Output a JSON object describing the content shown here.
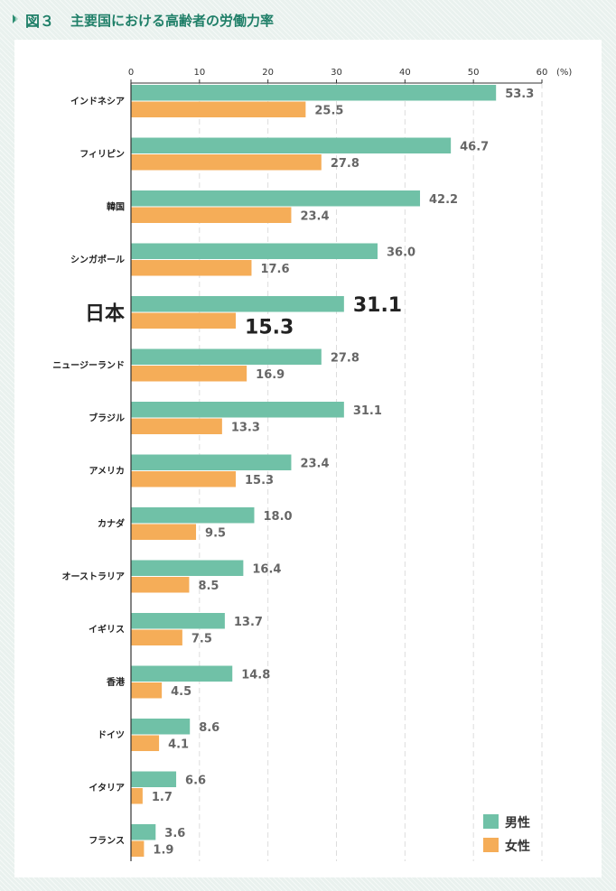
{
  "header": {
    "figure_label": "図３",
    "title": "主要国における高齢者の労働力率"
  },
  "colors": {
    "male": "#70c1a7",
    "female": "#f5ad58",
    "grid": "#dddddd",
    "axis": "#333333"
  },
  "chart_data": {
    "type": "bar",
    "orientation": "horizontal",
    "title": "",
    "xlabel": "",
    "ylabel": "",
    "unit_label": "(%)",
    "xlim": [
      0,
      60
    ],
    "xticks": [
      0,
      10,
      20,
      30,
      40,
      50,
      60
    ],
    "grid": true,
    "legend_position": "bottom-right",
    "highlight_category": "日本",
    "categories": [
      "インドネシア",
      "フィリピン",
      "韓国",
      "シンガポール",
      "日本",
      "ニュージーランド",
      "ブラジル",
      "アメリカ",
      "カナダ",
      "オーストラリア",
      "イギリス",
      "香港",
      "ドイツ",
      "イタリア",
      "フランス"
    ],
    "series": [
      {
        "name": "男性",
        "values": [
          53.3,
          46.7,
          42.2,
          36.0,
          31.1,
          27.8,
          31.1,
          23.4,
          18.0,
          16.4,
          13.7,
          14.8,
          8.6,
          6.6,
          3.6
        ]
      },
      {
        "name": "女性",
        "values": [
          25.5,
          27.8,
          23.4,
          17.6,
          15.3,
          16.9,
          13.3,
          15.3,
          9.5,
          8.5,
          7.5,
          4.5,
          4.1,
          1.7,
          1.9
        ]
      }
    ]
  }
}
